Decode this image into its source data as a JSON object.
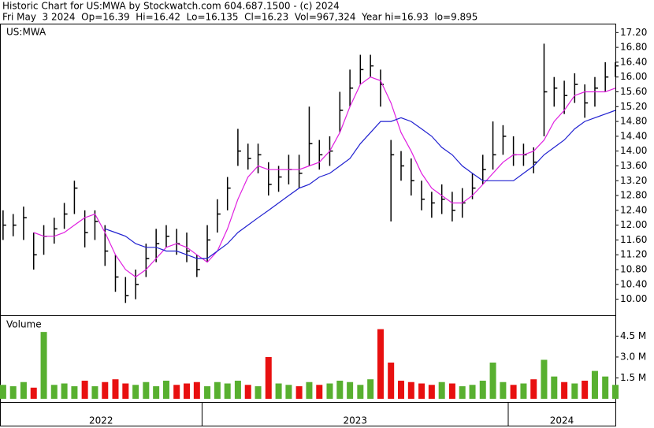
{
  "chart_data": {
    "type": "ohlc",
    "title": "Historic Chart for US:MWA by Stockwatch.com 604.687.1500 - (c) 2024",
    "subtitle": "Fri May  3 2024  Op=16.39  Hi=16.42  Lo=16.135  Cl=16.23  Vol=967,324  Year hi=16.93  lo=9.895",
    "symbol_label": "US:MWA",
    "volume_label": "Volume",
    "x": [
      2022.35,
      2022.383,
      2022.417,
      2022.45,
      2022.483,
      2022.517,
      2022.55,
      2022.583,
      2022.617,
      2022.65,
      2022.683,
      2022.717,
      2022.75,
      2022.783,
      2022.817,
      2022.85,
      2022.883,
      2022.917,
      2022.95,
      2022.983,
      2023.017,
      2023.05,
      2023.083,
      2023.117,
      2023.15,
      2023.183,
      2023.217,
      2023.25,
      2023.283,
      2023.317,
      2023.35,
      2023.383,
      2023.417,
      2023.45,
      2023.483,
      2023.517,
      2023.55,
      2023.583,
      2023.617,
      2023.65,
      2023.683,
      2023.717,
      2023.75,
      2023.783,
      2023.817,
      2023.85,
      2023.883,
      2023.917,
      2023.95,
      2023.983,
      2024.017,
      2024.05,
      2024.083,
      2024.117,
      2024.15,
      2024.183,
      2024.217,
      2024.25,
      2024.283,
      2024.317,
      2024.35
    ],
    "xlim": [
      2022.34,
      2024.35
    ],
    "year_starts": [
      2023,
      2024
    ],
    "year_labels": [
      "2022",
      "2023",
      "2024"
    ],
    "high": [
      12.4,
      12.3,
      12.5,
      11.8,
      12.0,
      12.2,
      12.6,
      13.2,
      12.4,
      12.4,
      12.0,
      11.2,
      10.6,
      10.8,
      11.5,
      11.9,
      12.0,
      11.9,
      11.8,
      11.2,
      12.0,
      12.7,
      13.3,
      14.6,
      14.2,
      14.2,
      13.7,
      13.6,
      13.9,
      13.9,
      15.2,
      14.3,
      14.4,
      15.6,
      16.2,
      16.6,
      16.6,
      16.2,
      14.3,
      14.0,
      13.8,
      13.2,
      12.9,
      13.1,
      12.9,
      13.0,
      13.4,
      13.9,
      14.8,
      14.7,
      14.4,
      14.2,
      14.1,
      16.9,
      16.0,
      15.9,
      16.1,
      15.8,
      16.0,
      16.4,
      16.4
    ],
    "low": [
      11.6,
      11.7,
      11.6,
      10.8,
      11.2,
      11.5,
      11.9,
      12.3,
      11.4,
      11.6,
      10.9,
      10.2,
      9.9,
      10.0,
      10.6,
      11.0,
      11.4,
      11.2,
      11.0,
      10.6,
      11.0,
      11.8,
      12.4,
      13.6,
      13.5,
      13.4,
      12.8,
      12.9,
      13.1,
      13.0,
      13.6,
      13.5,
      13.6,
      14.5,
      15.2,
      15.8,
      16.0,
      15.2,
      12.1,
      13.2,
      12.8,
      12.4,
      12.2,
      12.3,
      12.1,
      12.2,
      12.7,
      13.1,
      13.5,
      13.9,
      13.6,
      13.6,
      13.4,
      14.4,
      15.2,
      15.0,
      15.3,
      14.9,
      15.2,
      15.6,
      16.0
    ],
    "close": [
      12.0,
      12.0,
      12.2,
      11.2,
      11.7,
      11.9,
      12.3,
      13.0,
      11.8,
      12.1,
      11.3,
      10.6,
      10.1,
      10.4,
      11.1,
      11.5,
      11.7,
      11.5,
      11.3,
      10.8,
      11.6,
      12.3,
      13.0,
      14.0,
      13.8,
      13.9,
      13.1,
      13.3,
      13.5,
      13.4,
      14.2,
      13.9,
      14.0,
      15.1,
      15.7,
      16.2,
      16.3,
      15.8,
      13.9,
      13.6,
      13.2,
      12.7,
      12.6,
      12.7,
      12.4,
      12.6,
      13.0,
      13.5,
      13.9,
      14.4,
      13.9,
      13.9,
      13.7,
      15.6,
      15.7,
      15.5,
      15.8,
      15.3,
      15.7,
      16.0,
      16.3
    ],
    "price_color": "#000000",
    "series": [
      {
        "color": "#e020e0",
        "values": [
          null,
          null,
          null,
          11.8,
          11.7,
          11.7,
          11.8,
          12.0,
          12.2,
          12.3,
          11.8,
          11.2,
          10.8,
          10.6,
          10.8,
          11.1,
          11.4,
          11.5,
          11.4,
          11.2,
          11.0,
          11.3,
          11.9,
          12.7,
          13.3,
          13.6,
          13.5,
          13.5,
          13.5,
          13.5,
          13.6,
          13.7,
          14.0,
          14.5,
          15.2,
          15.8,
          16.0,
          15.9,
          15.3,
          14.5,
          14.0,
          13.4,
          13.0,
          12.8,
          12.6,
          12.6,
          12.8,
          13.1,
          13.4,
          13.7,
          13.9,
          13.9,
          14.0,
          14.3,
          14.8,
          15.1,
          15.5,
          15.6,
          15.6,
          15.6,
          15.7
        ]
      },
      {
        "color": "#2020d0",
        "values": [
          null,
          null,
          null,
          null,
          null,
          null,
          null,
          null,
          null,
          null,
          11.9,
          11.8,
          11.7,
          11.5,
          11.4,
          11.4,
          11.3,
          11.3,
          11.2,
          11.1,
          11.1,
          11.3,
          11.5,
          11.8,
          12.0,
          12.2,
          12.4,
          12.6,
          12.8,
          13.0,
          13.1,
          13.3,
          13.4,
          13.6,
          13.8,
          14.2,
          14.5,
          14.8,
          14.8,
          14.9,
          14.8,
          14.6,
          14.4,
          14.1,
          13.9,
          13.6,
          13.4,
          13.2,
          13.2,
          13.2,
          13.2,
          13.4,
          13.6,
          13.9,
          14.1,
          14.3,
          14.6,
          14.8,
          14.9,
          15.0,
          15.1
        ]
      }
    ],
    "ylim": [
      9.566,
      17.42
    ],
    "yticks": [
      {
        "value": 10.0,
        "label": "10.00"
      },
      {
        "value": 10.4,
        "label": "10.40"
      },
      {
        "value": 10.8,
        "label": "10.80"
      },
      {
        "value": 11.2,
        "label": "11.20"
      },
      {
        "value": 11.6,
        "label": "11.60"
      },
      {
        "value": 12.0,
        "label": "12.00"
      },
      {
        "value": 12.4,
        "label": "12.40"
      },
      {
        "value": 12.8,
        "label": "12.80"
      },
      {
        "value": 13.2,
        "label": "13.20"
      },
      {
        "value": 13.6,
        "label": "13.60"
      },
      {
        "value": 14.0,
        "label": "14.00"
      },
      {
        "value": 14.4,
        "label": "14.40"
      },
      {
        "value": 14.8,
        "label": "14.80"
      },
      {
        "value": 15.2,
        "label": "15.20"
      },
      {
        "value": 15.6,
        "label": "15.60"
      },
      {
        "value": 16.0,
        "label": "16.00"
      },
      {
        "value": 16.4,
        "label": "16.40"
      },
      {
        "value": 16.8,
        "label": "16.80"
      },
      {
        "value": 17.2,
        "label": "17.20"
      }
    ],
    "volume": [
      1.0,
      0.9,
      1.2,
      0.8,
      4.8,
      1.0,
      1.1,
      0.9,
      1.3,
      0.9,
      1.2,
      1.4,
      1.1,
      1.0,
      1.2,
      0.9,
      1.3,
      1.0,
      1.1,
      1.2,
      0.9,
      1.2,
      1.1,
      1.3,
      1.0,
      0.9,
      3.0,
      1.1,
      1.0,
      0.9,
      1.2,
      1.0,
      1.1,
      1.3,
      1.2,
      1.0,
      1.4,
      5.0,
      2.6,
      1.3,
      1.2,
      1.1,
      1.0,
      1.2,
      1.1,
      0.9,
      1.0,
      1.3,
      2.6,
      1.2,
      1.0,
      1.1,
      1.4,
      2.8,
      1.6,
      1.2,
      1.1,
      1.3,
      2.0,
      1.6,
      1.0
    ],
    "volume_up_color": "#58b030",
    "volume_down_color": "#e81010",
    "vlim": [
      -0.23,
      5.94
    ],
    "vticks": [
      {
        "value": 1.5,
        "label": "1.5 M"
      },
      {
        "value": 3.0,
        "label": "3.0 M"
      },
      {
        "value": 4.5,
        "label": "4.5 M"
      }
    ]
  }
}
